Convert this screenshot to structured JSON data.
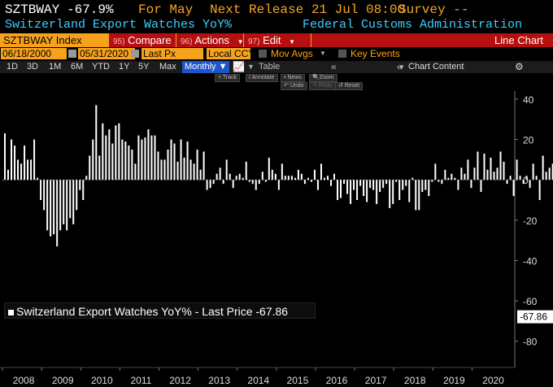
{
  "header": {
    "ticker": "SZTBWAY",
    "change": "-67.9%",
    "for_label": "For May",
    "next_release": "Next Release 21 Jul 08:00",
    "survey": "Survey --",
    "series_title": "Switzerland Export Watches YoY%",
    "source": "Federal Customs Administration"
  },
  "command_bar": {
    "security": "SZTBWAY Index",
    "compare_code": "95)",
    "compare": "Compare",
    "actions_code": "96)",
    "actions": "Actions",
    "edit_code": "97)",
    "edit": "Edit",
    "chart_type": "Line Chart"
  },
  "settings": {
    "start_date": "06/18/2000",
    "end_date": "05/31/2020",
    "field": "Last Px",
    "currency": "Local CCY",
    "mov_avgs": "Mov Avgs",
    "key_events": "Key Events"
  },
  "ranges": {
    "items": [
      "1D",
      "3D",
      "1M",
      "6M",
      "YTD",
      "1Y",
      "5Y",
      "Max"
    ],
    "period": "Monthly ▼",
    "table": "Table",
    "chart_content": "Chart Content"
  },
  "toolbar": {
    "track": "Track",
    "annotate": "Annotate",
    "news": "News",
    "zoom": "Zoom",
    "undo": "Undo",
    "redo": "Redo",
    "reset": "Reset"
  },
  "legend": {
    "text": "Switzerland Export Watches YoY% - Last Price -67.86",
    "last_value": "-67.86"
  },
  "colors": {
    "amber": "#f5a623",
    "cyan": "#3fd0ff",
    "orange_bar": "#f7a21b",
    "red": "#b50f0f"
  },
  "chart_data": {
    "type": "bar",
    "title": "Switzerland Export Watches YoY%",
    "ylim": [
      -93,
      44
    ],
    "y_ticks": [
      40,
      20,
      0,
      -20,
      -40,
      -60,
      -80
    ],
    "x_tick_labels": [
      "2008",
      "2009",
      "2010",
      "2011",
      "2012",
      "2013",
      "2014",
      "2015",
      "2016",
      "2017",
      "2018",
      "2019",
      "2020"
    ],
    "x_start": "2008-01",
    "frequency": "monthly",
    "values": [
      23,
      5,
      20,
      17,
      10,
      8,
      17,
      10,
      10,
      20,
      1,
      -10,
      -15,
      -25,
      -28,
      -27,
      -33,
      -25,
      -22,
      -25,
      -19,
      -22,
      -15,
      -5,
      -10,
      2,
      12,
      20,
      37,
      12,
      28,
      22,
      25,
      18,
      27,
      28,
      20,
      19,
      17,
      15,
      8,
      22,
      20,
      21,
      25,
      22,
      22,
      14,
      10,
      10,
      15,
      20,
      18,
      9,
      20,
      11,
      19,
      10,
      8,
      15,
      5,
      14,
      -5,
      -4,
      -2,
      3,
      6,
      -2,
      10,
      3,
      -4,
      2,
      3,
      1,
      9,
      -1,
      -2,
      -5,
      -2,
      4,
      -1,
      11,
      5,
      3,
      -5,
      8,
      2,
      2,
      2,
      1,
      5,
      3,
      -2,
      1,
      -1,
      5,
      -5,
      8,
      1,
      2,
      -3,
      3,
      -10,
      -9,
      -2,
      -7,
      -12,
      -5,
      -10,
      -3,
      -8,
      -11,
      -4,
      -5,
      -12,
      -6,
      -4,
      -2,
      -14,
      -12,
      -1,
      -10,
      -5,
      -3,
      -11,
      1,
      -15,
      -15,
      -6,
      -5,
      -8,
      -1,
      8,
      -1,
      -2,
      5,
      1,
      3,
      1,
      -5,
      6,
      3,
      10,
      -4,
      6,
      14,
      -6,
      13,
      5,
      11,
      4,
      6,
      14,
      9,
      -2,
      2,
      -8,
      10,
      2,
      -2,
      2,
      -4,
      8,
      2,
      -10,
      12,
      4,
      6,
      8,
      11,
      4,
      -4,
      9,
      3,
      -10,
      -22,
      -81,
      -67.86
    ]
  }
}
